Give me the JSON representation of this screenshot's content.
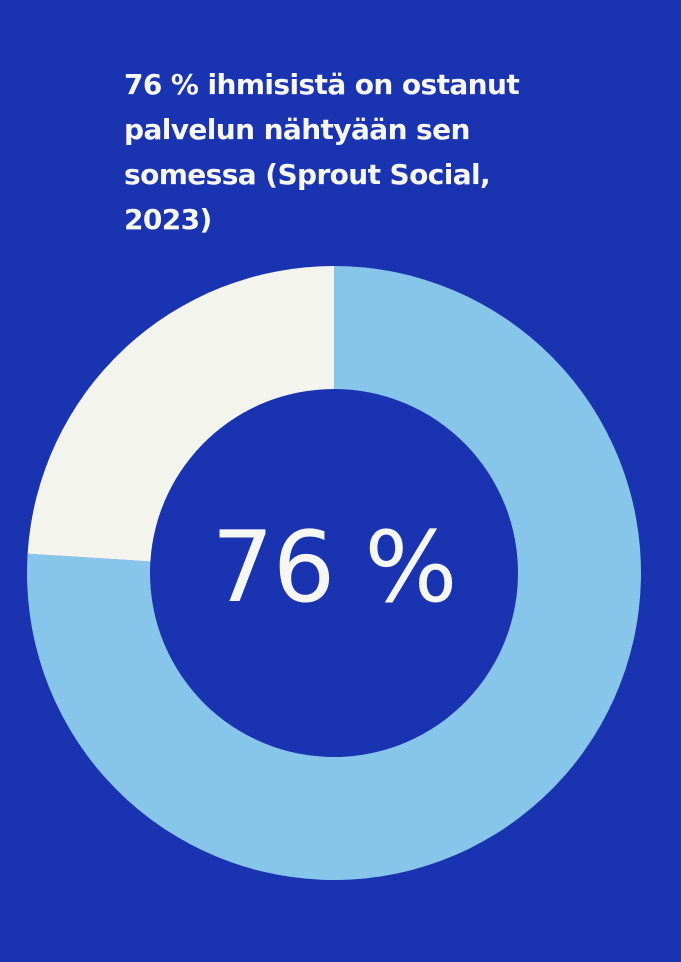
{
  "title": "76 % ihmisistä on ostanut palvelun nähtyään sen somessa (Sprout Social, 2023)",
  "colors": {
    "background": "#1a33b0",
    "primary_slice": "#87c5eb",
    "remainder_slice": "#f4f4ee",
    "text": "#f6f6f2"
  },
  "chart_data": {
    "type": "pie",
    "subtype": "donut",
    "title": "76 % ihmisistä on ostanut palvelun nähtyään sen somessa (Sprout Social, 2023)",
    "categories": [
      "",
      ""
    ],
    "values": [
      76,
      24
    ],
    "center_label": "76 %",
    "legend": "none"
  }
}
